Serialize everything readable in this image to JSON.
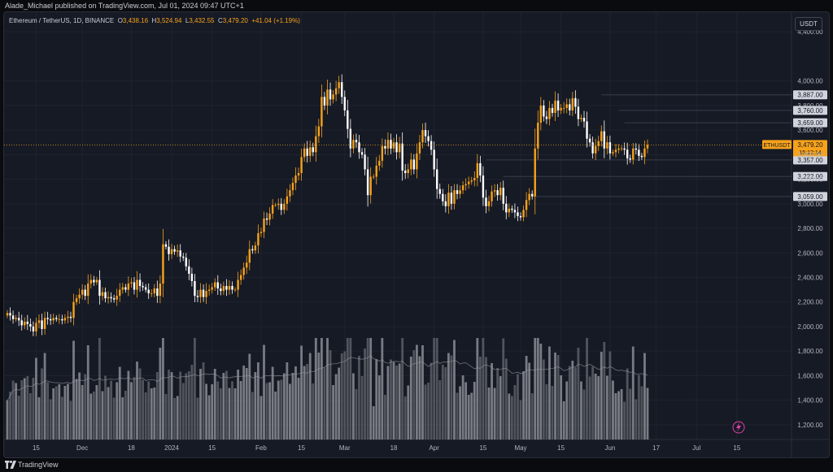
{
  "publisher": "Alade_Michael published on TradingView.com, Jul 01, 2024 09:47 UTC+1",
  "legend": {
    "symbol": "Ethereum / TetherUS, 1D, BINANCE",
    "open_label": "O",
    "open": "3,438.16",
    "high_label": "H",
    "high": "3,524.94",
    "low_label": "L",
    "low": "3,432.55",
    "close_label": "C",
    "close": "3,479.20",
    "change": "+41.04 (+1.19%)"
  },
  "currency": "USDT",
  "footer_brand": "TradingView",
  "colors": {
    "up": "#f7a21b",
    "down": "#ffffff",
    "background": "#161a25",
    "grid": "#1f2330",
    "level_line": "#3a3e4a"
  },
  "chart_data": {
    "type": "candlestick",
    "ylim": [
      1080,
      4560
    ],
    "yticks": [
      1200,
      1400,
      1600,
      1800,
      2000,
      2200,
      2400,
      2600,
      2800,
      3000,
      3200,
      3400,
      3600,
      3800,
      4000,
      4400
    ],
    "ytick_labels": [
      "1,200.00",
      "1,400.00",
      "1,600.00",
      "1,800.00",
      "2,000.00",
      "2,200.00",
      "2,400.00",
      "2,600.00",
      "2,800.00",
      "3,000.00",
      "3,200.00",
      "3,400.00",
      "3,600.00",
      "3,800.00",
      "4,000.00",
      "4,400.00"
    ],
    "xlabels": [
      "15",
      "Dec",
      "18",
      "2024",
      "15",
      "Feb",
      "15",
      "Mar",
      "18",
      "Apr",
      "15",
      "May",
      "15",
      "Jun",
      "17",
      "Jul",
      "15"
    ],
    "start_date": "2023-11-05",
    "xlabel_days": [
      10,
      26,
      43,
      57,
      71,
      88,
      102,
      117,
      134,
      148,
      165,
      178,
      192,
      209,
      225,
      239,
      253
    ],
    "closes": [
      2110,
      2090,
      2060,
      2070,
      2050,
      2010,
      2040,
      2020,
      2000,
      1960,
      2030,
      2050,
      1980,
      2070,
      2060,
      2050,
      2070,
      2060,
      2060,
      2050,
      2070,
      2080,
      2070,
      2200,
      2230,
      2260,
      2300,
      2250,
      2350,
      2380,
      2360,
      2380,
      2250,
      2280,
      2230,
      2240,
      2230,
      2220,
      2250,
      2300,
      2320,
      2300,
      2350,
      2360,
      2300,
      2380,
      2330,
      2320,
      2300,
      2270,
      2270,
      2310,
      2250,
      2350,
      2670,
      2650,
      2590,
      2630,
      2610,
      2620,
      2570,
      2560,
      2490,
      2430,
      2370,
      2250,
      2240,
      2300,
      2240,
      2290,
      2300,
      2320,
      2360,
      2310,
      2290,
      2330,
      2300,
      2330,
      2300,
      2300,
      2380,
      2420,
      2480,
      2520,
      2630,
      2620,
      2660,
      2760,
      2770,
      2880,
      2870,
      2920,
      2990,
      2990,
      3000,
      2950,
      3000,
      3060,
      3110,
      3170,
      3230,
      3250,
      3380,
      3450,
      3390,
      3460,
      3420,
      3550,
      3630,
      3870,
      3800,
      3930,
      3850,
      3890,
      3940,
      3990,
      3870,
      3760,
      3610,
      3450,
      3520,
      3500,
      3420,
      3400,
      3280,
      3070,
      3220,
      3220,
      3310,
      3350,
      3470,
      3450,
      3520,
      3450,
      3500,
      3420,
      3490,
      3270,
      3250,
      3280,
      3360,
      3280,
      3410,
      3500,
      3600,
      3550,
      3510,
      3440,
      3280,
      3120,
      3080,
      3020,
      2980,
      3090,
      3000,
      3110,
      3080,
      3110,
      3150,
      3160,
      3180,
      3190,
      3210,
      3330,
      3230,
      3050,
      2980,
      3020,
      3100,
      3110,
      3070,
      3130,
      3000,
      2930,
      2960,
      2950,
      2930,
      2900,
      2890,
      2950,
      3030,
      3080,
      3060,
      3450,
      3660,
      3800,
      3710,
      3690,
      3780,
      3740,
      3840,
      3760,
      3780,
      3780,
      3810,
      3760,
      3860,
      3790,
      3690,
      3700,
      3670,
      3530,
      3500,
      3410,
      3470,
      3510,
      3590,
      3450,
      3500,
      3410,
      3420,
      3440,
      3450,
      3450,
      3440,
      3370,
      3360,
      3450,
      3440,
      3390,
      3380,
      3450,
      3480
    ]
  },
  "levels": [
    {
      "label": "3,887.00",
      "value": 3887,
      "start_day": 206
    },
    {
      "label": "3,760.00",
      "value": 3760,
      "start_day": 212
    },
    {
      "label": "3,659.00",
      "value": 3659,
      "start_day": 214
    },
    {
      "label": "3,357.00",
      "value": 3357,
      "start_day": 166
    },
    {
      "label": "3,222.00",
      "value": 3222,
      "start_day": 172
    },
    {
      "label": "3,059.00",
      "value": 3059,
      "start_day": 182
    }
  ],
  "price_tag": {
    "symbol": "ETHUSDT",
    "price": "3,479.20",
    "countdown": "15:12:14",
    "value": 3479.2
  }
}
